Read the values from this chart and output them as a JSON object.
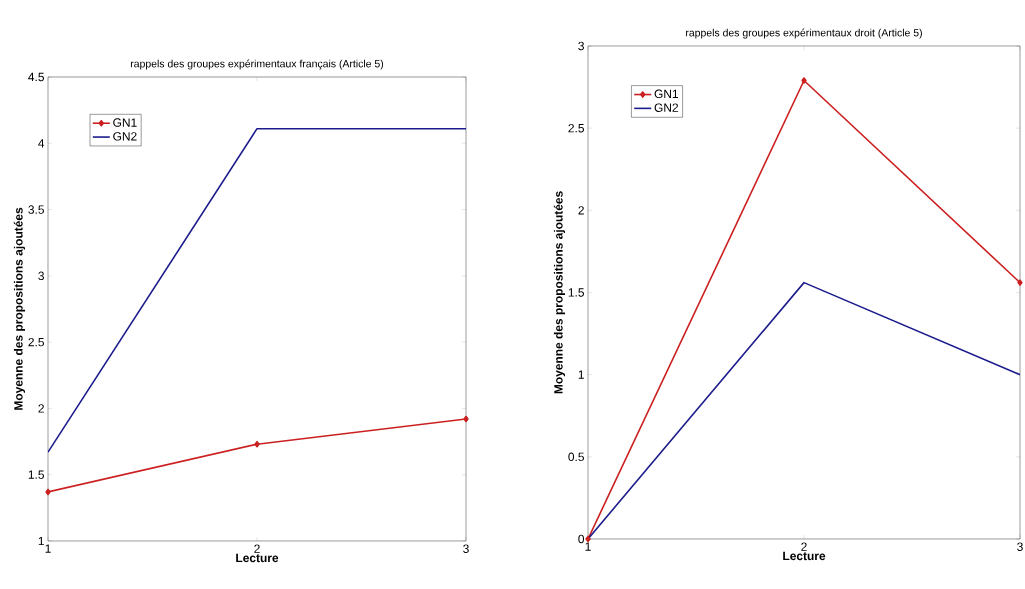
{
  "chart_data": [
    {
      "type": "line",
      "title": "rappels des groupes expérimentaux français (Article 5)",
      "xlabel": "Lecture",
      "ylabel": "Moyenne des propositions ajoutées",
      "x": [
        1,
        2,
        3
      ],
      "xlim": [
        1,
        3
      ],
      "xticks": [
        1,
        2,
        3
      ],
      "ylim": [
        1,
        4.5
      ],
      "yticks": [
        1,
        1.5,
        2,
        2.5,
        3,
        3.5,
        4,
        4.5
      ],
      "legend": "top left",
      "grid": false,
      "line_style": "solid",
      "series": [
        {
          "name": "GN1",
          "color": "#cc2020",
          "marker": "diamond",
          "values": [
            1.37,
            1.73,
            1.92
          ]
        },
        {
          "name": "GN2",
          "color": "#1c1c8c",
          "marker": "none",
          "values": [
            1.67,
            4.11,
            4.11
          ]
        }
      ]
    },
    {
      "type": "line",
      "title": "rappels des groupes expérimentaux droit (Article 5)",
      "xlabel": "Lecture",
      "ylabel": "Moyenne des propositions ajoutées",
      "x": [
        1,
        2,
        3
      ],
      "xlim": [
        1,
        3
      ],
      "xticks": [
        1,
        2,
        3
      ],
      "ylim": [
        0,
        3
      ],
      "yticks": [
        0,
        0.5,
        1,
        1.5,
        2,
        2.5,
        3
      ],
      "legend": "top left",
      "grid": false,
      "line_style": "solid",
      "series": [
        {
          "name": "GN1",
          "color": "#cc2020",
          "marker": "diamond",
          "values": [
            0,
            2.79,
            1.56
          ]
        },
        {
          "name": "GN2",
          "color": "#1c1c8c",
          "marker": "none",
          "values": [
            0,
            1.56,
            1.0
          ]
        }
      ]
    }
  ]
}
